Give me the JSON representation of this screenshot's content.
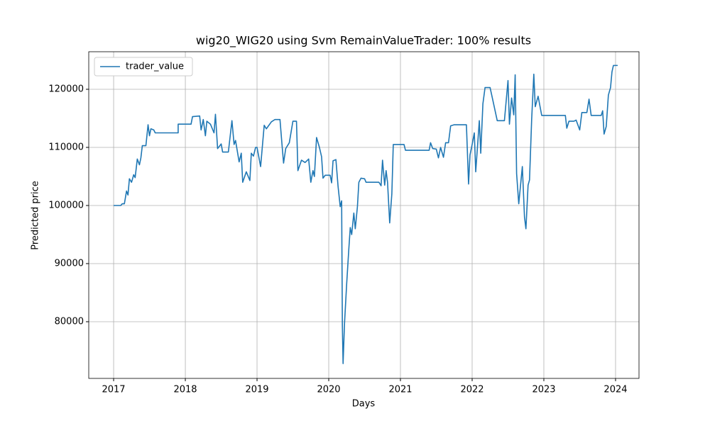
{
  "chart_data": {
    "type": "line",
    "title": "wig20_WIG20 using Svm RemainValueTrader: 100% results",
    "x_label": "Days",
    "y_label": "Predicted price",
    "grid": true,
    "legend": "upper left",
    "xlim": [
      2016.653,
      2024.327
    ],
    "xticks": [
      2017,
      2018,
      2019,
      2020,
      2021,
      2022,
      2023,
      2024
    ],
    "ylim": [
      70244,
      126463
    ],
    "yticks": [
      80000,
      90000,
      100000,
      110000,
      120000
    ],
    "x": [
      2017.0,
      2017.1,
      2017.12,
      2017.15,
      2017.18,
      2017.2,
      2017.22,
      2017.25,
      2017.28,
      2017.3,
      2017.33,
      2017.36,
      2017.38,
      2017.4,
      2017.45,
      2017.48,
      2017.5,
      2017.52,
      2017.56,
      2017.58,
      2017.9,
      2017.9,
      2018.0,
      2018.08,
      2018.1,
      2018.2,
      2018.22,
      2018.25,
      2018.28,
      2018.3,
      2018.35,
      2018.4,
      2018.42,
      2018.45,
      2018.5,
      2018.52,
      2018.6,
      2018.65,
      2018.68,
      2018.7,
      2018.75,
      2018.78,
      2018.8,
      2018.85,
      2018.9,
      2018.92,
      2018.95,
      2018.98,
      2019.0,
      2019.05,
      2019.1,
      2019.13,
      2019.2,
      2019.25,
      2019.32,
      2019.35,
      2019.37,
      2019.4,
      2019.45,
      2019.5,
      2019.55,
      2019.57,
      2019.62,
      2019.67,
      2019.72,
      2019.75,
      2019.78,
      2019.8,
      2019.83,
      2019.87,
      2019.9,
      2019.92,
      2019.95,
      2020.02,
      2020.04,
      2020.06,
      2020.1,
      2020.13,
      2020.16,
      2020.18,
      2020.19,
      2020.2,
      2020.22,
      2020.25,
      2020.28,
      2020.3,
      2020.32,
      2020.35,
      2020.37,
      2020.4,
      2020.42,
      2020.45,
      2020.5,
      2020.52,
      2020.7,
      2020.73,
      2020.75,
      2020.78,
      2020.8,
      2020.82,
      2020.85,
      2020.88,
      2020.9,
      2021.05,
      2021.07,
      2021.4,
      2021.42,
      2021.45,
      2021.5,
      2021.53,
      2021.56,
      2021.6,
      2021.63,
      2021.67,
      2021.7,
      2021.75,
      2021.92,
      2021.95,
      2021.97,
      2022.0,
      2022.03,
      2022.05,
      2022.1,
      2022.12,
      2022.15,
      2022.18,
      2022.25,
      2022.28,
      2022.35,
      2022.45,
      2022.5,
      2022.52,
      2022.55,
      2022.58,
      2022.6,
      2022.62,
      2022.65,
      2022.7,
      2022.73,
      2022.75,
      2022.78,
      2022.8,
      2022.83,
      2022.86,
      2022.88,
      2022.92,
      2022.97,
      2023.3,
      2023.32,
      2023.35,
      2023.42,
      2023.45,
      2023.5,
      2023.53,
      2023.6,
      2023.63,
      2023.66,
      2023.8,
      2023.82,
      2023.84,
      2023.87,
      2023.9,
      2023.93,
      2023.95,
      2023.97,
      2024.03
    ],
    "series": [
      {
        "name": "trader_value",
        "color": "#1f77b4",
        "values": [
          100000,
          100000,
          100300,
          100300,
          102500,
          101800,
          104600,
          104000,
          105300,
          104800,
          108000,
          107000,
          108200,
          110300,
          110300,
          113900,
          112000,
          113200,
          113000,
          112500,
          112500,
          114000,
          114000,
          114000,
          115300,
          115400,
          113000,
          114800,
          112000,
          114500,
          114000,
          112500,
          115700,
          109800,
          110600,
          109200,
          109200,
          114600,
          110500,
          111200,
          107500,
          109000,
          104000,
          105800,
          104300,
          109000,
          108500,
          110000,
          110000,
          106700,
          113800,
          113200,
          114400,
          114800,
          114800,
          110200,
          107300,
          109800,
          110800,
          114500,
          114500,
          106000,
          107800,
          107400,
          108000,
          104000,
          106000,
          105000,
          111700,
          110000,
          108400,
          104700,
          105200,
          105200,
          103900,
          107700,
          107900,
          103300,
          99800,
          100800,
          79300,
          72800,
          79700,
          86500,
          92500,
          96200,
          95000,
          98700,
          96000,
          99800,
          104000,
          104700,
          104600,
          104000,
          104000,
          103400,
          107800,
          103500,
          106000,
          104000,
          97000,
          102000,
          110500,
          110500,
          109500,
          109500,
          110800,
          109800,
          109700,
          108200,
          110000,
          108300,
          110800,
          110800,
          113700,
          113900,
          113900,
          103700,
          108700,
          110500,
          112500,
          105800,
          114600,
          109000,
          117500,
          120300,
          120300,
          118600,
          114600,
          114600,
          121500,
          114000,
          118500,
          115600,
          122500,
          105500,
          100300,
          106700,
          98000,
          96000,
          103500,
          104400,
          114800,
          122600,
          117000,
          118800,
          115500,
          115500,
          113300,
          114500,
          114500,
          114700,
          113000,
          116000,
          116000,
          118300,
          115500,
          115500,
          116300,
          112300,
          113600,
          119000,
          120300,
          123000,
          124100,
          124100
        ]
      }
    ]
  }
}
